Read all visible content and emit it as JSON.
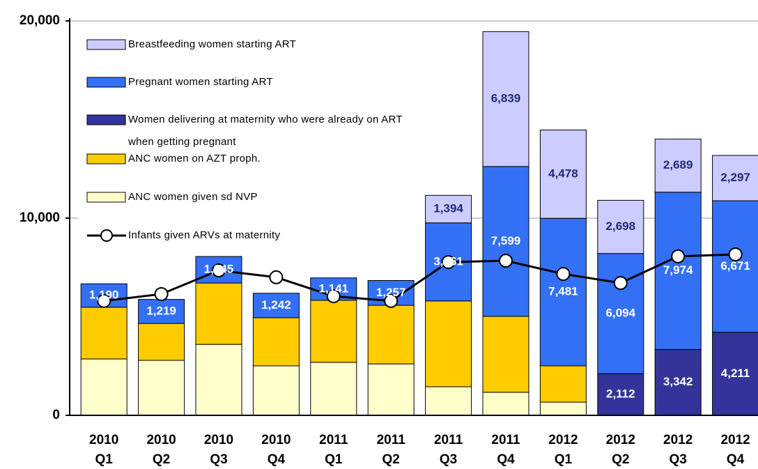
{
  "chart_data": {
    "type": "bar",
    "stacked": true,
    "categories": [
      [
        "2010",
        "Q1"
      ],
      [
        "2010",
        "Q2"
      ],
      [
        "2010",
        "Q3"
      ],
      [
        "2010",
        "Q4"
      ],
      [
        "2011",
        "Q1"
      ],
      [
        "2011",
        "Q2"
      ],
      [
        "2011",
        "Q3"
      ],
      [
        "2011",
        "Q4"
      ],
      [
        "2012",
        "Q1"
      ],
      [
        "2012",
        "Q2"
      ],
      [
        "2012",
        "Q3"
      ],
      [
        "2012",
        "Q4"
      ]
    ],
    "series": [
      {
        "name": "ANC women given sd NVP",
        "color": "#ffffcc",
        "values": [
          2860,
          2790,
          3600,
          2510,
          2690,
          2610,
          1450,
          1170,
          670,
          0,
          0,
          0
        ]
      },
      {
        "name": "ANC women on AZT proph.",
        "color": "#ffcc00",
        "values": [
          2620,
          1870,
          3110,
          2440,
          3140,
          2970,
          4350,
          3850,
          1840,
          0,
          0,
          0
        ]
      },
      {
        "name": "Women delivering at maternity who were already on ART when getting pregnant",
        "color": "#333399",
        "values": [
          0,
          0,
          0,
          0,
          0,
          0,
          0,
          0,
          0,
          2112,
          3342,
          4211
        ],
        "value_labels": [
          null,
          null,
          null,
          null,
          null,
          null,
          null,
          null,
          null,
          "2,112",
          "3,342",
          "4,211"
        ],
        "label_color": "#ffffff"
      },
      {
        "name": "Pregnant women starting ART",
        "color": "#3370f5",
        "values": [
          1190,
          1219,
          1345,
          1242,
          1141,
          1257,
          3961,
          7599,
          7481,
          6094,
          7974,
          6671
        ],
        "value_labels": [
          "1,190",
          "1,219",
          "1,345",
          "1,242",
          "1,141",
          "1,257",
          "3,961",
          "7,599",
          "7,481",
          "6,094",
          "7,974",
          "6,671"
        ],
        "label_color": "#ffffff"
      },
      {
        "name": "Breastfeeding women starting ART",
        "color": "#ccccff",
        "values": [
          0,
          0,
          0,
          0,
          0,
          0,
          1394,
          6839,
          4478,
          2698,
          2689,
          2297
        ],
        "value_labels": [
          null,
          null,
          null,
          null,
          null,
          null,
          "1,394",
          "6,839",
          "4,478",
          "2,698",
          "2,689",
          "2,297"
        ],
        "label_color": "#1f2a7a"
      },
      {
        "name": "Infants given ARVs at maternity",
        "type": "line",
        "color": "#000000",
        "values": [
          5800,
          6150,
          7350,
          7000,
          6040,
          5800,
          7770,
          7840,
          7170,
          6710,
          8060,
          8160
        ]
      }
    ],
    "ylim": [
      0,
      20000
    ],
    "yticks": [
      {
        "value": 0,
        "label": "0"
      },
      {
        "value": 10000,
        "label": "10,000"
      },
      {
        "value": 20000,
        "label": "20,000"
      }
    ],
    "grid": true,
    "legend": "upper left"
  }
}
